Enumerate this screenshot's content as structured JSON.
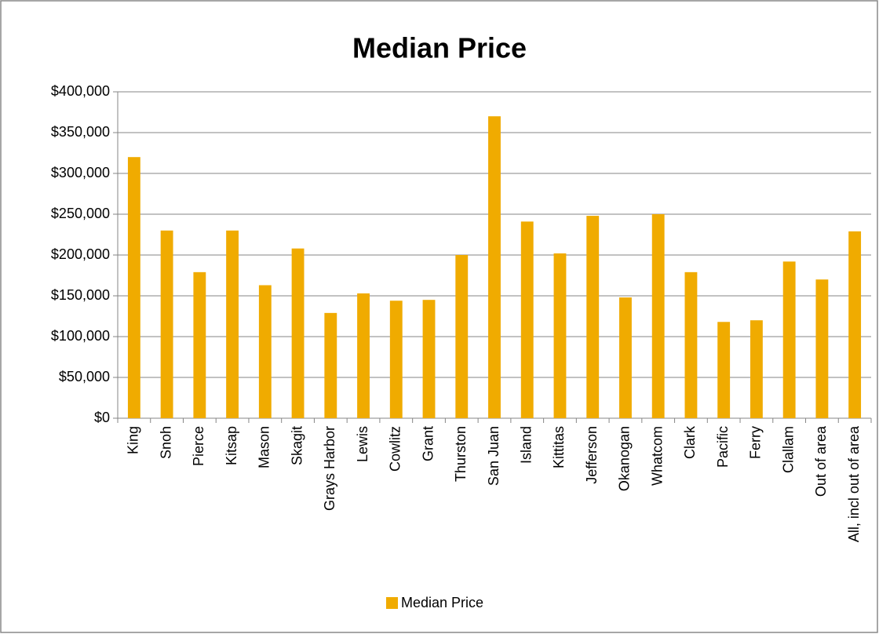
{
  "chart_data": {
    "type": "bar",
    "title": "Median Price",
    "categories": [
      "King",
      "Snoh",
      "Pierce",
      "Kitsap",
      "Mason",
      "Skagit",
      "Grays Harbor",
      "Lewis",
      "Cowlitz",
      "Grant",
      "Thurston",
      "San Juan",
      "Island",
      "Kittitas",
      "Jefferson",
      "Okanogan",
      "Whatcom",
      "Clark",
      "Pacific",
      "Ferry",
      "Clallam",
      "Out of area",
      "All, incl out of area"
    ],
    "series": [
      {
        "name": "Median Price",
        "color": "#f0ab00",
        "values": [
          320000,
          230000,
          179000,
          230000,
          163000,
          208000,
          129000,
          153000,
          144000,
          145000,
          200000,
          370000,
          241000,
          202000,
          248000,
          148000,
          250000,
          179000,
          118000,
          120000,
          192000,
          170000,
          229000
        ]
      }
    ],
    "ylim": [
      0,
      400000
    ],
    "yticks": [
      {
        "value": 0,
        "label": "$0"
      },
      {
        "value": 50000,
        "label": "$50,000"
      },
      {
        "value": 100000,
        "label": "$100,000"
      },
      {
        "value": 150000,
        "label": "$150,000"
      },
      {
        "value": 200000,
        "label": "$200,000"
      },
      {
        "value": 250000,
        "label": "$250,000"
      },
      {
        "value": 300000,
        "label": "$300,000"
      },
      {
        "value": 350000,
        "label": "$350,000"
      },
      {
        "value": 400000,
        "label": "$400,000"
      }
    ],
    "grid": true,
    "legend": "bottom"
  }
}
